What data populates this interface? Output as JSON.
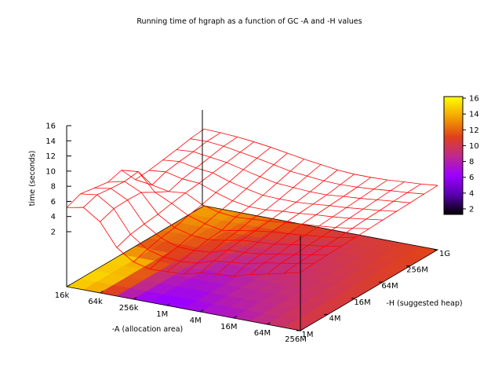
{
  "chart_data": {
    "type": "surface3d",
    "title": "Running time of hgraph as a function of GC -A and -H values",
    "xlabel": "-A (allocation area)",
    "ylabel": "-H (suggested heap)",
    "zlabel": "time (seconds)",
    "x_ticks": [
      "16k",
      "64k",
      "256k",
      "1M",
      "4M",
      "16M",
      "64M",
      "256M"
    ],
    "y_ticks": [
      "1M",
      "4M",
      "16M",
      "64M",
      "256M",
      "1G"
    ],
    "z_ticks": [
      2,
      4,
      6,
      8,
      10,
      12,
      14,
      16
    ],
    "zlim": [
      0,
      16
    ],
    "colorbox": {
      "ticks": [
        2,
        4,
        6,
        8,
        10,
        12,
        14,
        16
      ],
      "range": [
        1.3,
        16.2
      ],
      "gradient": [
        "#000000",
        "#5a00b0",
        "#9c00ff",
        "#c02a8a",
        "#e0421a",
        "#f4a500",
        "#ffff00"
      ]
    },
    "mesh_color": "#ff0000",
    "grid_x_count": 15,
    "grid_y_count": 11,
    "z_rows": [
      [
        14.0,
        14.6,
        12.6,
        8.6,
        6.6,
        5.9,
        6.0,
        6.1,
        6.9,
        7.2,
        7.4,
        8.3,
        8.9,
        9.6,
        10.3
      ],
      [
        15.0,
        15.4,
        13.5,
        9.5,
        7.4,
        6.6,
        6.4,
        6.6,
        7.6,
        7.9,
        8.2,
        8.9,
        9.4,
        9.9,
        10.5
      ],
      [
        14.6,
        15.1,
        13.6,
        9.9,
        8.0,
        7.0,
        6.9,
        7.1,
        8.1,
        8.2,
        8.5,
        9.0,
        9.5,
        10.0,
        10.6
      ],
      [
        14.2,
        14.9,
        13.5,
        10.2,
        8.4,
        7.6,
        7.4,
        7.8,
        8.4,
        8.6,
        8.8,
        9.3,
        9.7,
        10.1,
        10.7
      ],
      [
        14.9,
        15.2,
        12.1,
        10.7,
        9.1,
        8.2,
        7.6,
        8.1,
        8.6,
        9.0,
        9.2,
        9.5,
        9.8,
        10.2,
        10.8
      ],
      [
        11.8,
        11.4,
        10.8,
        11.1,
        9.6,
        8.8,
        8.5,
        8.7,
        8.9,
        9.2,
        9.5,
        9.7,
        10.0,
        10.4,
        10.9
      ],
      [
        12.0,
        12.3,
        11.6,
        11.4,
        10.3,
        9.4,
        8.9,
        8.9,
        9.2,
        9.4,
        9.7,
        9.9,
        10.2,
        10.6,
        11.0
      ],
      [
        12.4,
        12.7,
        12.1,
        11.8,
        10.8,
        10.1,
        9.5,
        9.4,
        9.4,
        9.6,
        9.9,
        10.1,
        10.4,
        10.7,
        11.1
      ],
      [
        12.8,
        13.0,
        12.6,
        12.2,
        11.5,
        10.8,
        10.2,
        10.0,
        9.8,
        9.8,
        10.1,
        10.3,
        10.6,
        10.9,
        11.2
      ],
      [
        13.3,
        13.4,
        13.1,
        12.6,
        12.1,
        11.5,
        10.9,
        10.6,
        10.3,
        10.2,
        10.3,
        10.5,
        10.8,
        11.0,
        11.3
      ],
      [
        13.6,
        13.5,
        13.3,
        13.0,
        12.6,
        12.1,
        11.6,
        11.2,
        10.8,
        10.6,
        10.6,
        10.7,
        10.9,
        11.1,
        11.4
      ]
    ]
  }
}
